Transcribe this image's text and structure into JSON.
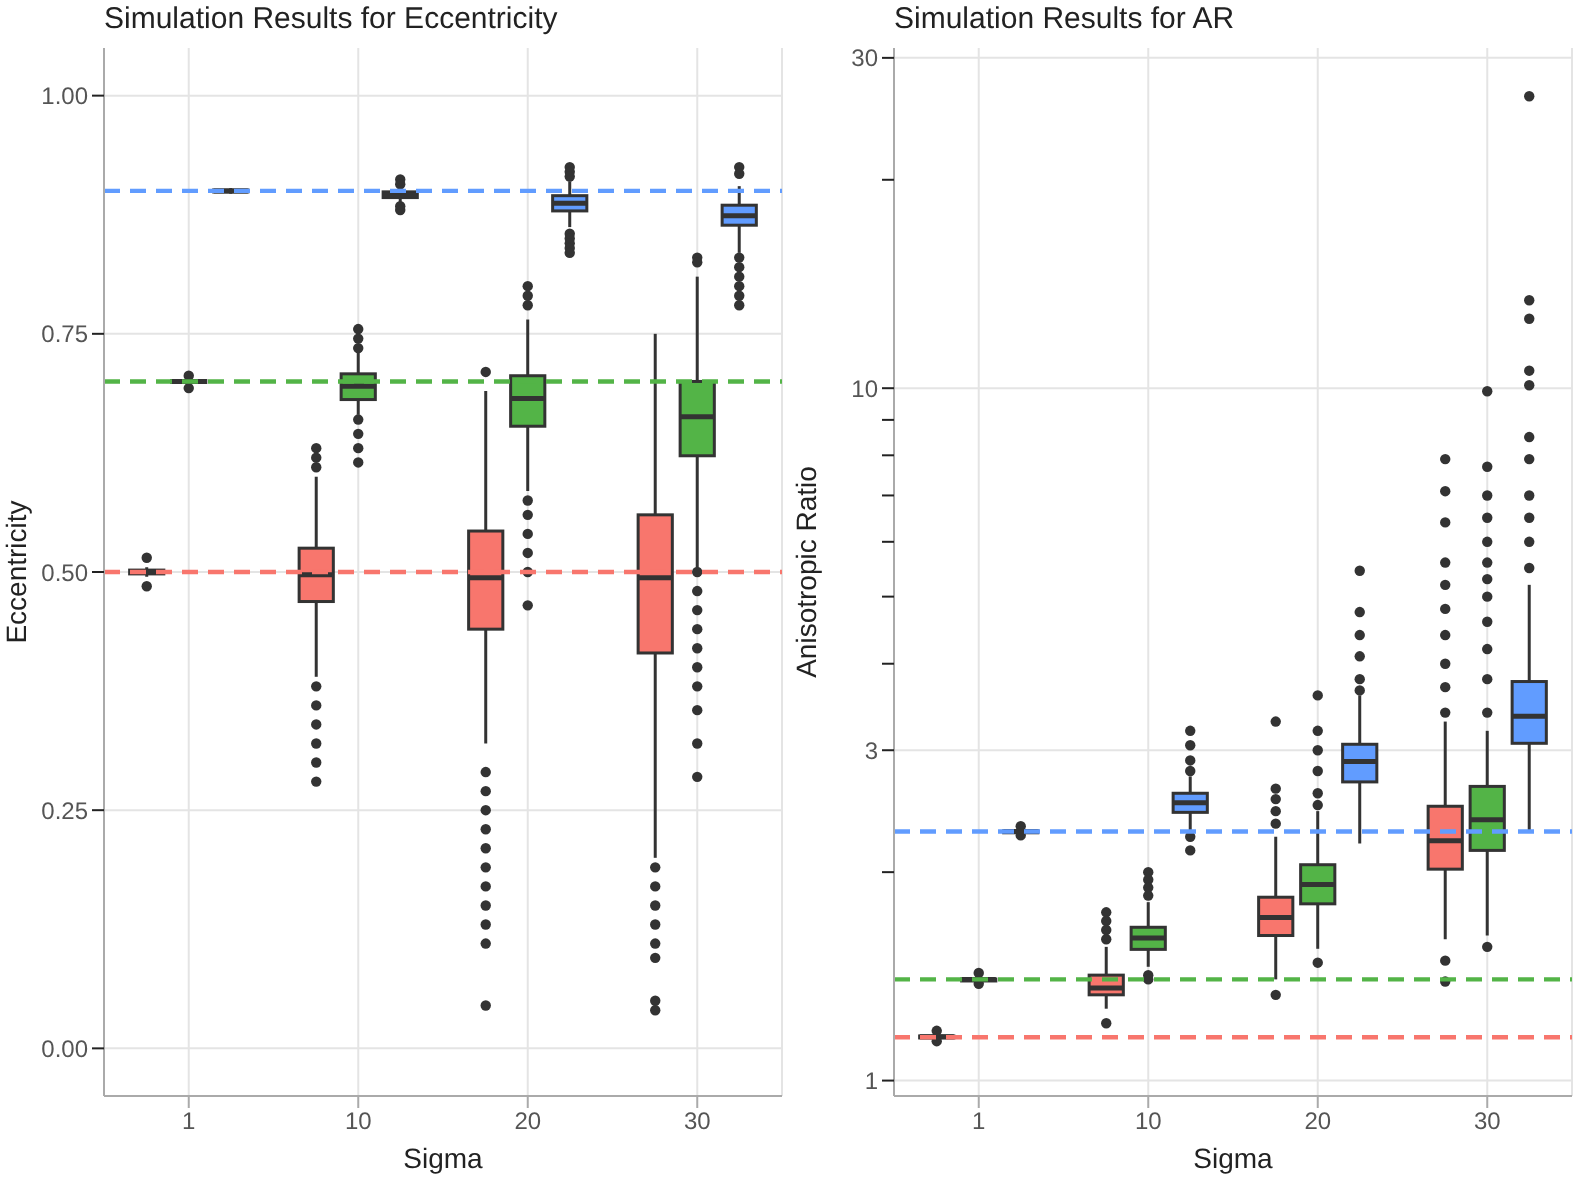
{
  "chart_data": [
    {
      "type": "box",
      "title": "Simulation Results for Eccentricity",
      "xlabel": "Sigma",
      "ylabel": "Eccentricity",
      "categories": [
        "1",
        "10",
        "20",
        "30"
      ],
      "ylim": [
        -0.05,
        1.05
      ],
      "yticks": [
        {
          "value": 0,
          "label": "0.00"
        },
        {
          "value": 0.25,
          "label": "0.25"
        },
        {
          "value": 0.5,
          "label": "0.50"
        },
        {
          "value": 0.75,
          "label": "0.75"
        },
        {
          "value": 1,
          "label": "1.00"
        }
      ],
      "grid": true,
      "series": [
        {
          "color": "#f8766d",
          "boxes": [
            {
              "low": 0.495,
              "q1": 0.498,
              "median": 0.5,
              "q3": 0.502,
              "high": 0.505,
              "outliers": [
                0.515,
                0.485
              ]
            },
            {
              "low": 0.39,
              "q1": 0.469,
              "median": 0.497,
              "q3": 0.525,
              "high": 0.6,
              "outliers": [
                0.63,
                0.62,
                0.61,
                0.38,
                0.36,
                0.34,
                0.32,
                0.3,
                0.28
              ]
            },
            {
              "low": 0.32,
              "q1": 0.44,
              "median": 0.494,
              "q3": 0.543,
              "high": 0.69,
              "outliers": [
                0.71,
                0.29,
                0.27,
                0.25,
                0.23,
                0.21,
                0.19,
                0.17,
                0.15,
                0.13,
                0.11,
                0.045
              ]
            },
            {
              "low": 0.2,
              "q1": 0.415,
              "median": 0.494,
              "q3": 0.56,
              "high": 0.75,
              "outliers": [
                0.19,
                0.17,
                0.15,
                0.13,
                0.11,
                0.095,
                0.05,
                0.04
              ]
            }
          ]
        },
        {
          "color": "#53b447",
          "boxes": [
            {
              "low": 0.697,
              "q1": 0.699,
              "median": 0.7,
              "q3": 0.701,
              "high": 0.703,
              "outliers": [
                0.706,
                0.693
              ]
            },
            {
              "low": 0.665,
              "q1": 0.681,
              "median": 0.695,
              "q3": 0.708,
              "high": 0.73,
              "outliers": [
                0.755,
                0.745,
                0.735,
                0.66,
                0.645,
                0.63,
                0.615
              ]
            },
            {
              "low": 0.585,
              "q1": 0.653,
              "median": 0.682,
              "q3": 0.706,
              "high": 0.765,
              "outliers": [
                0.8,
                0.79,
                0.78,
                0.575,
                0.56,
                0.54,
                0.52,
                0.5,
                0.465
              ]
            },
            {
              "low": 0.505,
              "q1": 0.622,
              "median": 0.663,
              "q3": 0.7,
              "high": 0.81,
              "outliers": [
                0.83,
                0.825,
                0.5,
                0.48,
                0.46,
                0.44,
                0.42,
                0.4,
                0.38,
                0.355,
                0.32,
                0.285
              ]
            }
          ]
        },
        {
          "color": "#619cff",
          "boxes": [
            {
              "low": 0.897,
              "q1": 0.899,
              "median": 0.9,
              "q3": 0.901,
              "high": 0.903
            },
            {
              "low": 0.888,
              "q1": 0.893,
              "median": 0.896,
              "q3": 0.899,
              "high": 0.904,
              "outliers": [
                0.912,
                0.907,
                0.884,
                0.88
              ]
            },
            {
              "low": 0.862,
              "q1": 0.879,
              "median": 0.887,
              "q3": 0.895,
              "high": 0.91,
              "outliers": [
                0.925,
                0.92,
                0.915,
                0.855,
                0.85,
                0.845,
                0.84,
                0.835
              ]
            },
            {
              "low": 0.835,
              "q1": 0.864,
              "median": 0.874,
              "q3": 0.885,
              "high": 0.905,
              "outliers": [
                0.925,
                0.918,
                0.83,
                0.82,
                0.81,
                0.8,
                0.79,
                0.78
              ]
            }
          ]
        }
      ],
      "ref_lines": [
        {
          "axis": "y",
          "value": 0.5,
          "color": "#f8766d",
          "line_style": "dashed"
        },
        {
          "axis": "y",
          "value": 0.7,
          "color": "#53b447",
          "line_style": "dashed"
        },
        {
          "axis": "y",
          "value": 0.9,
          "color": "#619cff",
          "line_style": "dashed"
        }
      ]
    },
    {
      "type": "box",
      "title": "Simulation Results for AR",
      "xlabel": "Sigma",
      "ylabel": "Anisotropic Ratio",
      "categories": [
        "1",
        "10",
        "20",
        "30"
      ],
      "log": true,
      "ylim": [
        0.95,
        31
      ],
      "yticks": [
        1,
        {
          "value": 2,
          "label": null
        },
        3,
        {
          "value": 4,
          "label": null
        },
        {
          "value": 5,
          "label": null
        },
        {
          "value": 6,
          "label": null
        },
        {
          "value": 7,
          "label": null
        },
        {
          "value": 8,
          "label": null
        },
        {
          "value": 9,
          "label": null
        },
        10,
        {
          "value": 20,
          "label": null
        },
        30
      ],
      "grid": true,
      "series": [
        {
          "color": "#f8766d",
          "boxes": [
            {
              "low": 1.15,
              "q1": 1.155,
              "median": 1.157,
              "q3": 1.16,
              "high": 1.165,
              "outliers": [
                1.18,
                1.14
              ]
            },
            {
              "low": 1.27,
              "q1": 1.33,
              "median": 1.36,
              "q3": 1.42,
              "high": 1.56,
              "outliers": [
                1.75,
                1.7,
                1.65,
                1.6,
                1.21
              ]
            },
            {
              "low": 1.4,
              "q1": 1.62,
              "median": 1.72,
              "q3": 1.84,
              "high": 2.25,
              "outliers": [
                3.3,
                2.64,
                2.55,
                2.45,
                2.35,
                1.33
              ]
            },
            {
              "low": 1.6,
              "q1": 2.02,
              "median": 2.22,
              "q3": 2.49,
              "high": 3.3,
              "outliers": [
                7.9,
                7.1,
                6.4,
                5.6,
                5.2,
                4.8,
                4.4,
                4.0,
                3.7,
                3.4,
                1.49,
                1.39
              ]
            }
          ]
        },
        {
          "color": "#53b447",
          "boxes": [
            {
              "low": 1.395,
              "q1": 1.398,
              "median": 1.4,
              "q3": 1.402,
              "high": 1.405,
              "outliers": [
                1.43,
                1.38
              ]
            },
            {
              "low": 1.46,
              "q1": 1.547,
              "median": 1.606,
              "q3": 1.665,
              "high": 1.81,
              "outliers": [
                2.0,
                1.95,
                1.9,
                1.85,
                1.42,
                1.4
              ]
            },
            {
              "low": 1.55,
              "q1": 1.8,
              "median": 1.92,
              "q3": 2.05,
              "high": 2.45,
              "outliers": [
                3.6,
                3.2,
                3.0,
                2.8,
                2.6,
                2.5,
                1.48
              ]
            },
            {
              "low": 1.62,
              "q1": 2.15,
              "median": 2.38,
              "q3": 2.66,
              "high": 3.2,
              "outliers": [
                9.9,
                7.7,
                7.0,
                6.5,
                6.0,
                5.6,
                5.3,
                5.0,
                4.6,
                4.2,
                3.8,
                3.4,
                1.56
              ]
            }
          ]
        },
        {
          "color": "#619cff",
          "boxes": [
            {
              "low": 2.28,
              "q1": 2.285,
              "median": 2.29,
              "q3": 2.295,
              "high": 2.3,
              "outliers": [
                2.33,
                2.26
              ]
            },
            {
              "low": 2.3,
              "q1": 2.44,
              "median": 2.52,
              "q3": 2.6,
              "high": 2.75,
              "outliers": [
                3.2,
                3.05,
                2.9,
                2.8,
                2.25,
                2.15
              ]
            },
            {
              "low": 2.2,
              "q1": 2.7,
              "median": 2.89,
              "q3": 3.06,
              "high": 3.6,
              "outliers": [
                5.45,
                4.75,
                4.4,
                4.1,
                3.8,
                3.66
              ]
            },
            {
              "low": 2.3,
              "q1": 3.07,
              "median": 3.36,
              "q3": 3.77,
              "high": 5.2,
              "outliers": [
                26.4,
                13.4,
                12.6,
                10.6,
                10.1,
                8.5,
                7.9,
                7.0,
                6.5,
                6.0,
                5.5
              ]
            }
          ]
        }
      ],
      "ref_lines": [
        {
          "axis": "y",
          "value": 1.155,
          "color": "#f8766d",
          "line_style": "dashed"
        },
        {
          "axis": "y",
          "value": 1.4,
          "color": "#53b447",
          "line_style": "dashed"
        },
        {
          "axis": "y",
          "value": 2.29,
          "color": "#619cff",
          "line_style": "dashed"
        }
      ]
    }
  ]
}
